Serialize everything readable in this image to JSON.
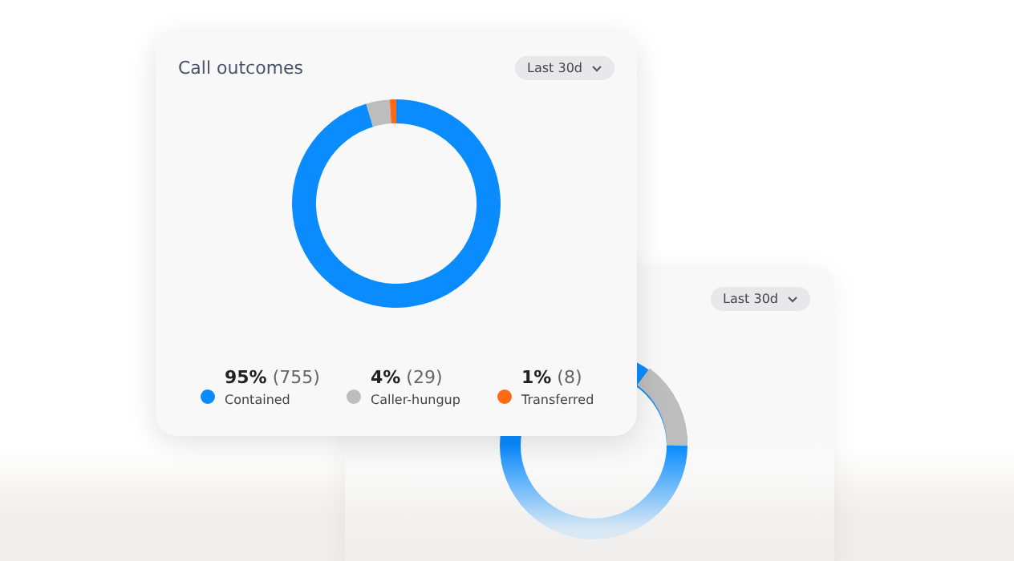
{
  "chart_data": [
    {
      "type": "donut",
      "title": "Call outcomes",
      "categories": [
        "Contained",
        "Caller-hungup",
        "Transferred"
      ],
      "values": [
        755,
        29,
        8
      ],
      "colors": [
        "#0a8cff",
        "#bdbdbd",
        "#ff6a13"
      ],
      "value_labels": [
        "95% (755)",
        "4% (29)",
        "1% (8)"
      ],
      "legend": "bottom",
      "annotations": [
        "Last 30d"
      ]
    },
    {
      "type": "other",
      "annotations": [
        "Last 30d"
      ]
    }
  ]
}
